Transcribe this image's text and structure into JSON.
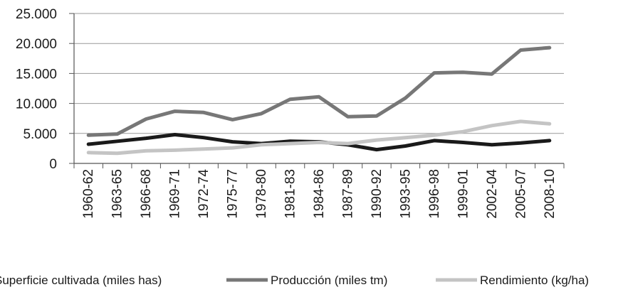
{
  "chart_data": {
    "type": "line",
    "categories": [
      "1960-62",
      "1963-65",
      "1966-68",
      "1969-71",
      "1972-74",
      "1975-77",
      "1978-80",
      "1981-83",
      "1984-86",
      "1987-89",
      "1990-92",
      "1993-95",
      "1996-98",
      "1999-01",
      "2002-04",
      "2005-07",
      "2008-10"
    ],
    "ylim": [
      0,
      25000
    ],
    "yticks": [
      "0",
      "5.000",
      "10.000",
      "15.000",
      "20.000",
      "25.000"
    ],
    "grid": true,
    "legend_position": "bottom",
    "series": [
      {
        "name": "Superficie cultivada (miles has)",
        "color": "#1a1a1a",
        "values": [
          3200,
          3700,
          4200,
          4800,
          4300,
          3600,
          3300,
          3700,
          3600,
          3100,
          2300,
          2900,
          3800,
          3500,
          3100,
          3400,
          3800
        ]
      },
      {
        "name": "Producción (miles tm)",
        "color": "#777777",
        "values": [
          4700,
          4900,
          7400,
          8700,
          8500,
          7300,
          8300,
          10700,
          11100,
          7800,
          7900,
          10900,
          15100,
          15200,
          14900,
          18900,
          19300
        ]
      },
      {
        "name": "Rendimiento (kg/ha)",
        "color": "#c4c4c4",
        "values": [
          1800,
          1700,
          2100,
          2200,
          2400,
          2600,
          3100,
          3300,
          3500,
          3300,
          3900,
          4300,
          4700,
          5300,
          6300,
          7000,
          6600
        ]
      }
    ]
  }
}
